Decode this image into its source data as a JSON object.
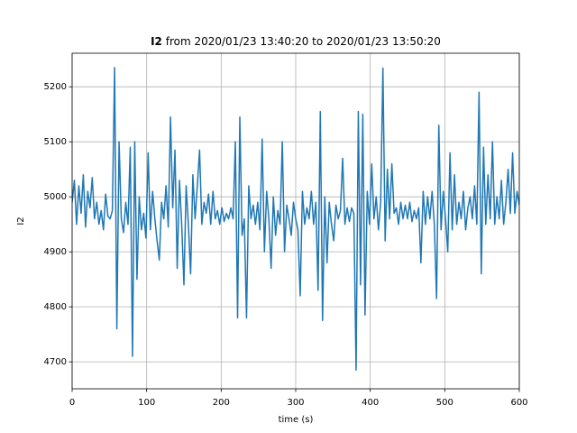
{
  "chart_data": {
    "type": "line",
    "title_bold": "I2",
    "title": "from 2020/01/23 13:40:20 to 2020/01/23 13:50:20",
    "x_label": "time (s)",
    "y_label": "I2",
    "xlim": [
      0,
      600
    ],
    "ylim": [
      4651,
      5261
    ],
    "xticks": [
      0,
      100,
      200,
      300,
      400,
      500,
      600
    ],
    "yticks": [
      4700,
      4800,
      4900,
      5000,
      5100,
      5200
    ],
    "grid": true,
    "series": [
      {
        "color": "#1f77b4",
        "x": [
          0,
          3,
          6,
          9,
          12,
          15,
          18,
          21,
          24,
          27,
          30,
          33,
          36,
          39,
          42,
          45,
          48,
          51,
          54,
          57,
          60,
          63,
          66,
          69,
          72,
          75,
          78,
          81,
          84,
          87,
          90,
          93,
          96,
          99,
          102,
          105,
          108,
          111,
          114,
          117,
          120,
          123,
          126,
          129,
          132,
          135,
          138,
          141,
          144,
          147,
          150,
          153,
          156,
          159,
          162,
          165,
          168,
          171,
          174,
          177,
          180,
          183,
          186,
          189,
          192,
          195,
          198,
          201,
          204,
          207,
          210,
          213,
          216,
          219,
          222,
          225,
          228,
          231,
          234,
          237,
          240,
          243,
          246,
          249,
          252,
          255,
          258,
          261,
          264,
          267,
          270,
          273,
          276,
          279,
          282,
          285,
          288,
          291,
          294,
          297,
          300,
          303,
          306,
          309,
          312,
          315,
          318,
          321,
          324,
          327,
          330,
          333,
          336,
          339,
          342,
          345,
          348,
          351,
          354,
          357,
          360,
          363,
          366,
          369,
          372,
          375,
          378,
          381,
          384,
          387,
          390,
          393,
          396,
          399,
          402,
          405,
          408,
          411,
          414,
          417,
          420,
          423,
          426,
          429,
          432,
          435,
          438,
          441,
          444,
          447,
          450,
          453,
          456,
          459,
          462,
          465,
          468,
          471,
          474,
          477,
          480,
          483,
          486,
          489,
          492,
          495,
          498,
          501,
          504,
          507,
          510,
          513,
          516,
          519,
          522,
          525,
          528,
          531,
          534,
          537,
          540,
          543,
          546,
          549,
          552,
          555,
          558,
          561,
          564,
          567,
          570,
          573,
          576,
          579,
          582,
          585,
          588,
          591,
          594,
          597,
          600
        ],
        "values": [
          4990,
          5030,
          4950,
          5020,
          4970,
          5040,
          4945,
          5010,
          4980,
          5035,
          4960,
          4990,
          4950,
          4975,
          4940,
          5005,
          4965,
          4960,
          4975,
          5235,
          4760,
          5100,
          4960,
          4935,
          4990,
          4950,
          5090,
          4710,
          5100,
          4850,
          5000,
          4940,
          4970,
          4925,
          5080,
          4940,
          5010,
          4960,
          4920,
          4885,
          4990,
          4960,
          5020,
          4945,
          5145,
          4980,
          5085,
          4870,
          5030,
          4950,
          4840,
          5020,
          4950,
          4860,
          5040,
          4960,
          5020,
          5085,
          4950,
          4990,
          4970,
          5005,
          4950,
          5010,
          4960,
          4975,
          4950,
          4980,
          4955,
          4970,
          4960,
          4980,
          4960,
          5100,
          4780,
          5145,
          4930,
          4960,
          4780,
          5020,
          4960,
          4985,
          4950,
          4990,
          4940,
          5105,
          4900,
          5010,
          4960,
          4870,
          5000,
          4930,
          4975,
          4950,
          5100,
          4900,
          4985,
          4960,
          4930,
          4990,
          4960,
          4940,
          4820,
          5010,
          4950,
          4980,
          4960,
          5010,
          4950,
          4990,
          4830,
          5155,
          4775,
          5000,
          4880,
          4990,
          4950,
          4920,
          4985,
          4960,
          4975,
          5070,
          4950,
          4980,
          4955,
          4980,
          4970,
          4685,
          5155,
          4840,
          5150,
          4785,
          5010,
          4950,
          5060,
          4960,
          5000,
          4940,
          4990,
          5234,
          4920,
          5050,
          4960,
          5060,
          4970,
          4980,
          4950,
          4990,
          4960,
          4985,
          4960,
          4990,
          4955,
          4975,
          4960,
          4980,
          4880,
          5010,
          4950,
          5000,
          4960,
          5010,
          4950,
          4815,
          5130,
          4940,
          5010,
          4960,
          4900,
          5080,
          4940,
          5040,
          4950,
          4990,
          4960,
          5010,
          4940,
          4980,
          5000,
          4960,
          5020,
          4950,
          5190,
          4860,
          5090,
          4950,
          5040,
          4960,
          5100,
          4950,
          5000,
          4960,
          5030,
          4950,
          4990,
          5050,
          4970,
          5080,
          4970,
          5010,
          4985
        ]
      }
    ]
  }
}
